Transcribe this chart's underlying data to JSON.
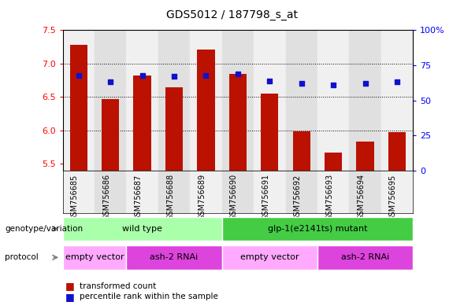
{
  "title": "GDS5012 / 187798_s_at",
  "samples": [
    "GSM756685",
    "GSM756686",
    "GSM756687",
    "GSM756688",
    "GSM756689",
    "GSM756690",
    "GSM756691",
    "GSM756692",
    "GSM756693",
    "GSM756694",
    "GSM756695"
  ],
  "transformed_count": [
    7.28,
    6.47,
    6.82,
    6.65,
    7.21,
    6.85,
    6.55,
    5.99,
    5.67,
    5.84,
    5.97
  ],
  "percentile_rank": [
    68,
    63,
    68,
    67,
    68,
    69,
    64,
    62,
    61,
    62,
    63
  ],
  "ylim_left": [
    5.4,
    7.5
  ],
  "ylim_right": [
    0,
    100
  ],
  "yticks_left": [
    5.5,
    6.0,
    6.5,
    7.0,
    7.5
  ],
  "yticks_right": [
    0,
    25,
    50,
    75,
    100
  ],
  "ytick_labels_right": [
    "0",
    "25",
    "50",
    "75",
    "100%"
  ],
  "bar_color": "#bb1100",
  "dot_color": "#1111cc",
  "bar_bottom": 5.4,
  "genotype_groups": [
    {
      "label": "wild type",
      "start": 0,
      "end": 4,
      "color": "#aaffaa"
    },
    {
      "label": "glp-1(e2141ts) mutant",
      "start": 5,
      "end": 10,
      "color": "#44cc44"
    }
  ],
  "protocol_groups": [
    {
      "label": "empty vector",
      "start": 0,
      "end": 1,
      "color": "#ffaaff"
    },
    {
      "label": "ash-2 RNAi",
      "start": 2,
      "end": 4,
      "color": "#dd44dd"
    },
    {
      "label": "empty vector",
      "start": 5,
      "end": 7,
      "color": "#ffaaff"
    },
    {
      "label": "ash-2 RNAi",
      "start": 8,
      "end": 10,
      "color": "#dd44dd"
    }
  ],
  "col_bg_odd": "#e0e0e0",
  "col_bg_even": "#f0f0f0"
}
